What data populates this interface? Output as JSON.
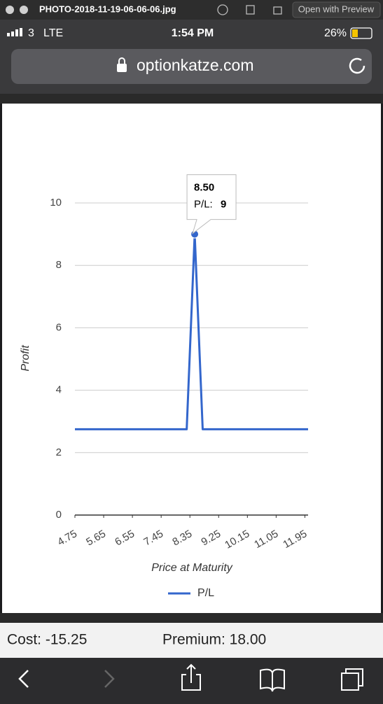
{
  "window": {
    "title": "PHOTO-2018-11-19-06-06-06.jpg",
    "open_button": "Open with Preview"
  },
  "status_bar": {
    "carrier": "3",
    "network": "LTE",
    "time": "1:54 PM",
    "battery": "26%"
  },
  "browser": {
    "url": "optionkatze.com"
  },
  "chart_data": {
    "type": "line",
    "x_label": "Price at Maturity",
    "y_label": "Profit",
    "xlim": [
      4.75,
      12.05
    ],
    "xticks": [
      4.75,
      5.65,
      6.55,
      7.45,
      8.35,
      9.25,
      10.15,
      11.05,
      11.95
    ],
    "ylim": [
      0,
      10
    ],
    "yticks": [
      0,
      2,
      4,
      6,
      8,
      10
    ],
    "grid": true,
    "legend": "bottom",
    "series": [
      {
        "name": "P/L",
        "color": "#3366cc",
        "x": [
          4.75,
          8.25,
          8.5,
          8.75,
          12.05
        ],
        "values": [
          2.75,
          2.75,
          9,
          2.75,
          2.75
        ]
      }
    ],
    "tooltip": {
      "title": "8.50",
      "label": "P/L:",
      "value": 9
    }
  },
  "footer": {
    "cost": "Cost: -15.25",
    "premium": "Premium: 18.00"
  }
}
